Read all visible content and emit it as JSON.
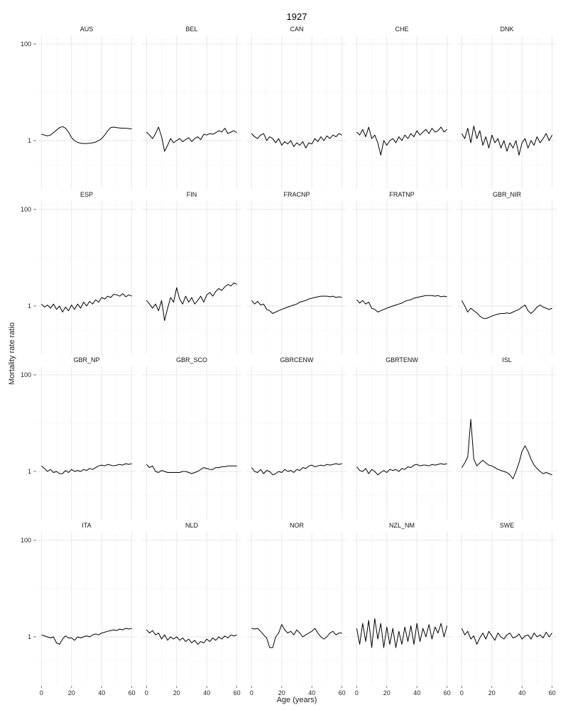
{
  "chart_data": {
    "type": "line",
    "title": "1927",
    "xlabel": "Age (years)",
    "ylabel": "Mortality rate ratio",
    "y_scale": "log10",
    "ylim": [
      0.1,
      150
    ],
    "xlim": [
      -3,
      63
    ],
    "x_ticks": [
      0,
      20,
      40,
      60
    ],
    "y_ticks": [
      1,
      100
    ],
    "y_tick_labels": [
      "1",
      "100"
    ],
    "grid": true,
    "layout": "facet grid, 4 rows x 5 columns",
    "line_color": "#000000",
    "x": [
      0,
      2,
      4,
      6,
      8,
      10,
      12,
      14,
      16,
      18,
      20,
      22,
      24,
      26,
      28,
      30,
      32,
      34,
      36,
      38,
      40,
      42,
      44,
      46,
      48,
      50,
      52,
      54,
      56,
      58,
      60
    ],
    "panels": [
      {
        "name": "AUS",
        "values": [
          1.35,
          1.3,
          1.25,
          1.3,
          1.45,
          1.65,
          1.85,
          1.95,
          1.8,
          1.5,
          1.15,
          1.0,
          0.92,
          0.88,
          0.87,
          0.87,
          0.88,
          0.9,
          0.93,
          1.0,
          1.1,
          1.3,
          1.6,
          1.85,
          1.9,
          1.85,
          1.82,
          1.8,
          1.8,
          1.78,
          1.75
        ]
      },
      {
        "name": "BEL",
        "values": [
          1.5,
          1.3,
          1.1,
          1.4,
          1.9,
          1.2,
          0.6,
          0.8,
          1.1,
          0.9,
          1.0,
          1.1,
          0.95,
          1.05,
          1.15,
          0.95,
          1.1,
          1.2,
          1.05,
          1.35,
          1.3,
          1.4,
          1.35,
          1.45,
          1.6,
          1.5,
          1.8,
          1.4,
          1.5,
          1.6,
          1.45
        ]
      },
      {
        "name": "CAN",
        "values": [
          1.4,
          1.2,
          1.1,
          1.3,
          1.4,
          1.0,
          1.2,
          1.1,
          0.9,
          1.1,
          0.8,
          0.95,
          0.85,
          1.0,
          0.75,
          0.9,
          0.8,
          0.95,
          0.7,
          0.9,
          0.85,
          1.1,
          0.95,
          1.2,
          1.0,
          1.25,
          1.1,
          1.3,
          1.2,
          1.4,
          1.3
        ]
      },
      {
        "name": "CHE",
        "values": [
          1.5,
          1.3,
          1.7,
          1.2,
          1.9,
          1.1,
          1.3,
          0.9,
          0.5,
          1.0,
          0.8,
          1.0,
          1.1,
          0.9,
          1.2,
          1.0,
          1.3,
          1.1,
          1.4,
          1.2,
          1.6,
          1.3,
          1.5,
          1.7,
          1.4,
          1.8,
          1.5,
          1.6,
          1.9,
          1.5,
          1.7
        ]
      },
      {
        "name": "DNK",
        "values": [
          1.4,
          1.1,
          1.8,
          0.9,
          2.0,
          1.1,
          1.6,
          0.8,
          1.2,
          0.7,
          1.3,
          0.9,
          1.1,
          0.7,
          1.0,
          0.6,
          0.9,
          0.7,
          1.0,
          0.5,
          0.9,
          1.1,
          0.7,
          1.0,
          0.8,
          1.2,
          0.9,
          1.1,
          1.4,
          1.0,
          1.3
        ]
      },
      {
        "name": "ESP",
        "values": [
          1.1,
          0.95,
          1.05,
          0.9,
          1.1,
          0.85,
          1.0,
          0.75,
          0.95,
          0.8,
          1.05,
          0.85,
          1.1,
          0.9,
          1.2,
          1.0,
          1.25,
          1.1,
          1.35,
          1.2,
          1.5,
          1.4,
          1.6,
          1.5,
          1.75,
          1.7,
          1.6,
          1.8,
          1.55,
          1.7,
          1.6
        ]
      },
      {
        "name": "FIN",
        "values": [
          1.3,
          1.1,
          0.9,
          1.1,
          0.8,
          1.3,
          0.5,
          0.9,
          1.5,
          1.2,
          2.4,
          1.4,
          1.1,
          1.6,
          1.2,
          1.5,
          1.1,
          1.3,
          1.6,
          1.2,
          1.7,
          1.9,
          1.6,
          2.0,
          2.3,
          2.1,
          2.5,
          2.8,
          2.6,
          3.0,
          2.8
        ]
      },
      {
        "name": "FRACNP",
        "values": [
          1.3,
          1.1,
          1.25,
          1.05,
          1.1,
          0.85,
          0.8,
          0.7,
          0.75,
          0.8,
          0.85,
          0.9,
          0.95,
          1.0,
          1.05,
          1.1,
          1.2,
          1.25,
          1.3,
          1.4,
          1.45,
          1.5,
          1.55,
          1.6,
          1.6,
          1.6,
          1.55,
          1.6,
          1.5,
          1.55,
          1.5
        ]
      },
      {
        "name": "FRATNP",
        "values": [
          1.35,
          1.15,
          1.3,
          1.1,
          1.2,
          0.9,
          0.85,
          0.75,
          0.8,
          0.85,
          0.9,
          0.95,
          1.0,
          1.05,
          1.1,
          1.15,
          1.25,
          1.3,
          1.35,
          1.45,
          1.5,
          1.55,
          1.6,
          1.65,
          1.65,
          1.65,
          1.6,
          1.65,
          1.55,
          1.6,
          1.55
        ]
      },
      {
        "name": "GBR_NIR",
        "values": [
          1.3,
          1.0,
          0.75,
          0.9,
          0.8,
          0.72,
          0.62,
          0.56,
          0.55,
          0.58,
          0.62,
          0.65,
          0.68,
          0.7,
          0.7,
          0.72,
          0.7,
          0.75,
          0.8,
          0.85,
          0.95,
          1.05,
          0.8,
          0.7,
          0.8,
          0.95,
          1.05,
          0.95,
          0.9,
          0.85,
          0.9
        ]
      },
      {
        "name": "GBR_NP",
        "values": [
          1.3,
          1.15,
          1.0,
          1.1,
          0.95,
          1.0,
          0.9,
          0.9,
          1.05,
          0.95,
          1.1,
          1.0,
          1.05,
          1.0,
          1.1,
          1.05,
          1.15,
          1.1,
          1.2,
          1.3,
          1.35,
          1.3,
          1.4,
          1.35,
          1.3,
          1.35,
          1.4,
          1.35,
          1.45,
          1.4,
          1.45
        ]
      },
      {
        "name": "GBR_SCO",
        "values": [
          1.4,
          1.2,
          1.3,
          1.0,
          0.95,
          1.05,
          1.0,
          0.95,
          0.95,
          0.95,
          0.95,
          0.95,
          1.0,
          1.0,
          0.95,
          0.9,
          0.95,
          1.0,
          1.1,
          1.2,
          1.15,
          1.1,
          1.1,
          1.2,
          1.2,
          1.25,
          1.25,
          1.3,
          1.3,
          1.3,
          1.3
        ]
      },
      {
        "name": "GBRCENW",
        "values": [
          1.2,
          1.0,
          0.95,
          1.1,
          0.9,
          1.05,
          1.0,
          0.85,
          0.9,
          1.0,
          0.95,
          1.1,
          1.0,
          1.05,
          0.95,
          1.1,
          1.05,
          1.2,
          1.15,
          1.3,
          1.35,
          1.25,
          1.3,
          1.35,
          1.3,
          1.4,
          1.35,
          1.4,
          1.45,
          1.4,
          1.45
        ]
      },
      {
        "name": "GBRTENW",
        "values": [
          1.25,
          1.05,
          1.0,
          1.15,
          0.9,
          1.1,
          1.0,
          0.85,
          0.95,
          1.05,
          0.95,
          1.1,
          1.05,
          1.1,
          1.0,
          1.15,
          1.1,
          1.25,
          1.2,
          1.35,
          1.4,
          1.3,
          1.35,
          1.35,
          1.3,
          1.4,
          1.35,
          1.4,
          1.45,
          1.4,
          1.45
        ]
      },
      {
        "name": "ISL",
        "values": [
          1.2,
          1.5,
          2.0,
          12.0,
          1.8,
          1.3,
          1.5,
          1.7,
          1.5,
          1.35,
          1.3,
          1.2,
          1.1,
          1.05,
          1.0,
          0.95,
          0.85,
          0.7,
          1.0,
          1.5,
          2.6,
          3.4,
          2.6,
          1.8,
          1.35,
          1.15,
          1.0,
          0.9,
          0.95,
          0.9,
          0.85
        ]
      },
      {
        "name": "ITA",
        "values": [
          1.1,
          1.05,
          1.0,
          0.95,
          1.0,
          0.75,
          0.7,
          0.9,
          1.05,
          0.95,
          0.95,
          0.85,
          1.0,
          0.95,
          1.0,
          1.05,
          1.0,
          1.1,
          1.15,
          1.1,
          1.2,
          1.25,
          1.3,
          1.35,
          1.4,
          1.35,
          1.45,
          1.4,
          1.5,
          1.45,
          1.5
        ]
      },
      {
        "name": "NLD",
        "values": [
          1.4,
          1.2,
          1.35,
          1.1,
          1.2,
          0.9,
          1.1,
          0.85,
          1.0,
          0.9,
          1.0,
          0.85,
          0.95,
          0.8,
          0.9,
          0.75,
          0.85,
          0.7,
          0.8,
          0.75,
          0.9,
          0.8,
          0.95,
          0.85,
          1.0,
          0.9,
          1.05,
          0.95,
          1.1,
          1.05,
          1.1
        ]
      },
      {
        "name": "NOR",
        "values": [
          1.5,
          1.45,
          1.5,
          1.3,
          1.1,
          0.95,
          0.6,
          0.6,
          1.0,
          1.2,
          1.8,
          1.4,
          1.2,
          1.3,
          1.1,
          1.4,
          1.2,
          1.0,
          1.1,
          1.2,
          1.3,
          1.5,
          1.2,
          1.0,
          0.9,
          1.0,
          1.2,
          1.3,
          1.1,
          1.2,
          1.2
        ]
      },
      {
        "name": "NZL_NM",
        "values": [
          1.5,
          0.7,
          1.9,
          0.8,
          2.2,
          0.6,
          2.4,
          0.9,
          1.9,
          0.6,
          1.6,
          0.7,
          1.5,
          0.6,
          1.3,
          0.7,
          1.6,
          0.8,
          1.7,
          0.7,
          1.9,
          0.8,
          1.5,
          1.0,
          1.8,
          0.9,
          1.6,
          1.2,
          1.9,
          1.0,
          1.7
        ]
      },
      {
        "name": "SWE",
        "values": [
          1.5,
          1.1,
          1.3,
          0.9,
          1.05,
          0.7,
          0.95,
          1.2,
          0.9,
          1.3,
          1.05,
          0.85,
          1.2,
          1.0,
          0.9,
          1.1,
          1.2,
          0.95,
          1.0,
          1.15,
          0.9,
          1.05,
          1.1,
          0.9,
          1.2,
          1.0,
          1.1,
          0.95,
          1.25,
          1.0,
          1.2
        ]
      }
    ]
  }
}
